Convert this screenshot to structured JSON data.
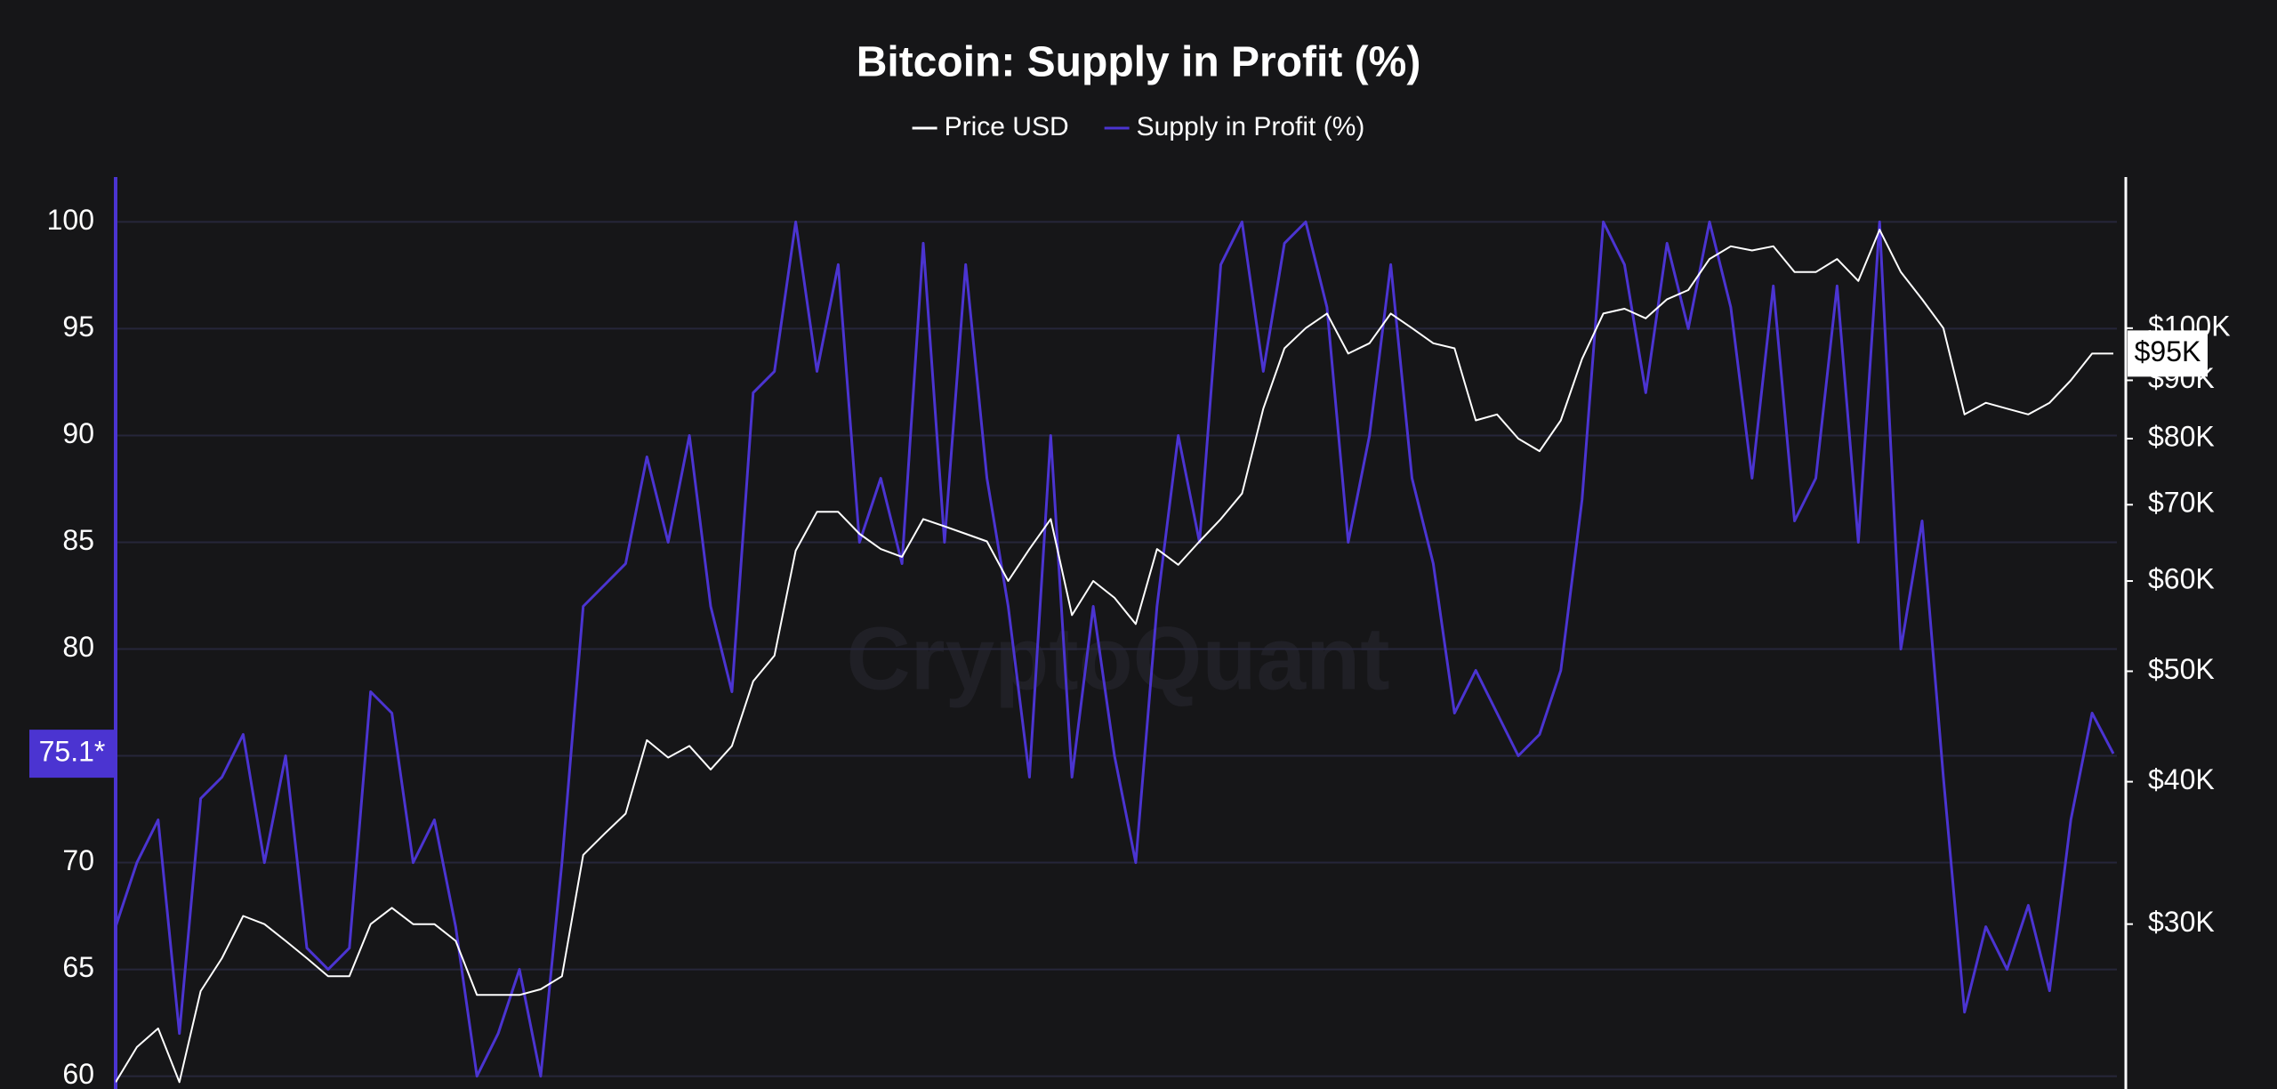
{
  "chart_data": {
    "type": "line",
    "title": "Bitcoin: Supply in Profit (%)",
    "watermark": "CryptoQuant",
    "categories": [
      null,
      null,
      null,
      null,
      null,
      null,
      null,
      null,
      null,
      null,
      null,
      null,
      null,
      null,
      null,
      null,
      null,
      null,
      null,
      null,
      null,
      null,
      null,
      null,
      null,
      null,
      null,
      null,
      null,
      null,
      null,
      null,
      null,
      null,
      null,
      null,
      null,
      null,
      null,
      null,
      null,
      null,
      null,
      null,
      null,
      null,
      null,
      null,
      null,
      null,
      null,
      null,
      null,
      null,
      null,
      null,
      null,
      null,
      null,
      null,
      null,
      null,
      null,
      null,
      null,
      null,
      null,
      null,
      null,
      null,
      null,
      null,
      null,
      null,
      null,
      null,
      null,
      null,
      null,
      null,
      null,
      null,
      null,
      null,
      null,
      null,
      null,
      null,
      null,
      null,
      null,
      null,
      null,
      null,
      null
    ],
    "series": [
      {
        "name": "Price USD",
        "color": "#ffffff",
        "axis": "y2",
        "values": [
          21800,
          23400,
          24300,
          21800,
          26200,
          28000,
          30500,
          30000,
          29000,
          28000,
          27000,
          27000,
          30000,
          31000,
          30000,
          30000,
          29000,
          26000,
          26000,
          26000,
          26300,
          27000,
          34500,
          36000,
          37500,
          43500,
          42000,
          43000,
          41000,
          43000,
          49000,
          51600,
          63800,
          69000,
          69000,
          66000,
          64000,
          63000,
          68000,
          67000,
          66000,
          65000,
          60000,
          64000,
          68000,
          56000,
          60000,
          58000,
          55000,
          64000,
          62000,
          65000,
          68000,
          71600,
          85000,
          96000,
          100000,
          103000,
          95000,
          97000,
          103000,
          100000,
          97000,
          96000,
          83000,
          84000,
          80000,
          78000,
          83000,
          94000,
          103000,
          104000,
          102000,
          106000,
          108000,
          115000,
          118000,
          117000,
          118000,
          112000,
          112000,
          115000,
          110000,
          122000,
          112000,
          106000,
          100000,
          84000,
          86000,
          85000,
          84000,
          86000,
          90000,
          95000,
          95000
        ]
      },
      {
        "name": "Supply in Profit (%)",
        "color": "#4b34d1",
        "values": [
          67,
          70,
          72,
          62,
          73,
          74,
          76,
          70,
          75,
          66,
          65,
          66,
          78,
          77,
          70,
          72,
          67,
          60,
          62,
          65,
          60,
          70,
          82,
          83,
          84,
          89,
          85,
          90,
          82,
          78,
          92,
          93,
          100,
          93,
          98,
          85,
          88,
          84,
          99,
          85,
          98,
          88,
          82,
          74,
          90,
          74,
          82,
          75,
          70,
          82,
          90,
          85,
          98,
          100,
          93,
          99,
          100,
          96,
          85,
          90,
          98,
          88,
          84,
          77,
          79,
          77,
          75,
          76,
          79,
          87,
          100,
          98,
          92,
          99,
          95,
          100,
          96,
          88,
          97,
          86,
          88,
          97,
          85,
          100,
          80,
          86,
          74,
          63,
          67,
          65,
          68,
          64,
          72,
          77,
          75.1
        ]
      }
    ],
    "ylim": [
      59.4,
      102.1
    ],
    "yticks": [
      60,
      65,
      70,
      75,
      80,
      85,
      90,
      95,
      100
    ],
    "y2lim": [
      21500,
      135700
    ],
    "y2scale": "log",
    "y2ticks": [
      {
        "value": 30000,
        "label": "$30K"
      },
      {
        "value": 40000,
        "label": "$40K"
      },
      {
        "value": 50000,
        "label": "$50K"
      },
      {
        "value": 60000,
        "label": "$60K"
      },
      {
        "value": 70000,
        "label": "$70K"
      },
      {
        "value": 80000,
        "label": "$80K"
      },
      {
        "value": 90000,
        "label": "$90K"
      },
      {
        "value": 100000,
        "label": "$100K"
      }
    ],
    "grid": true,
    "legend": "top",
    "annotations": [
      {
        "value": 75.1,
        "label": "75.1*",
        "axis": "y"
      },
      {
        "value": 95000,
        "label": "$95K",
        "axis": "y2"
      }
    ]
  }
}
